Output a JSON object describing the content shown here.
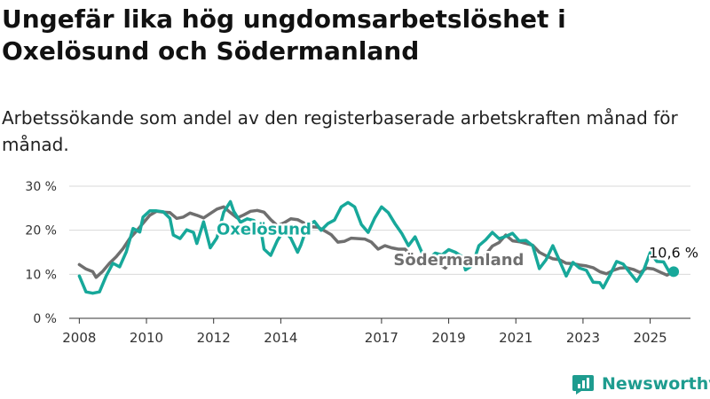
{
  "header": {
    "title": "Ungefär lika hög ungdomsarbetslöshet i Oxelösund och Södermanland",
    "subtitle": "Arbetssökande som andel av den registerbaserade arbetskraften månad för månad."
  },
  "brand": {
    "name": "Newsworthy",
    "icon": "newsworthy-logo-icon"
  },
  "colors": {
    "oxelosund": "#17a89a",
    "sodermanland": "#6f6f6f",
    "grid": "#d9d9d9",
    "axis": "#333333"
  },
  "chart_data": {
    "type": "line",
    "xlim": [
      2007.7,
      2026.2
    ],
    "ylim": [
      0,
      30
    ],
    "grid": true,
    "yticks": [
      {
        "value": 0,
        "label": "0 %"
      },
      {
        "value": 10,
        "label": "10 %"
      },
      {
        "value": 20,
        "label": "20 %"
      },
      {
        "value": 30,
        "label": "30 %"
      }
    ],
    "xticks": [
      {
        "value": 2008,
        "label": "2008"
      },
      {
        "value": 2010,
        "label": "2010"
      },
      {
        "value": 2012,
        "label": "2012"
      },
      {
        "value": 2014,
        "label": "2014"
      },
      {
        "value": 2017,
        "label": "2017"
      },
      {
        "value": 2019,
        "label": "2019"
      },
      {
        "value": 2021,
        "label": "2021"
      },
      {
        "value": 2023,
        "label": "2023"
      },
      {
        "value": 2025,
        "label": "2025"
      }
    ],
    "series": [
      {
        "name": "Södermanland",
        "label_at": {
          "x": 2019.3,
          "y": 13.3
        },
        "points": [
          [
            2008.0,
            12.2
          ],
          [
            2008.2,
            11.2
          ],
          [
            2008.4,
            10.6
          ],
          [
            2008.5,
            9.3
          ],
          [
            2008.7,
            10.7
          ],
          [
            2008.9,
            12.5
          ],
          [
            2009.1,
            14.0
          ],
          [
            2009.3,
            15.8
          ],
          [
            2009.5,
            18.1
          ],
          [
            2009.7,
            19.8
          ],
          [
            2009.9,
            21.6
          ],
          [
            2010.1,
            23.4
          ],
          [
            2010.3,
            24.3
          ],
          [
            2010.5,
            24.1
          ],
          [
            2010.7,
            24.0
          ],
          [
            2010.9,
            22.7
          ],
          [
            2011.1,
            23.0
          ],
          [
            2011.3,
            23.9
          ],
          [
            2011.5,
            23.4
          ],
          [
            2011.7,
            22.8
          ],
          [
            2011.9,
            23.8
          ],
          [
            2012.1,
            24.8
          ],
          [
            2012.3,
            25.3
          ],
          [
            2012.5,
            24.0
          ],
          [
            2012.7,
            22.8
          ],
          [
            2012.9,
            23.5
          ],
          [
            2013.1,
            24.3
          ],
          [
            2013.3,
            24.5
          ],
          [
            2013.5,
            24.1
          ],
          [
            2013.7,
            22.4
          ],
          [
            2013.9,
            21.0
          ],
          [
            2014.1,
            21.7
          ],
          [
            2014.3,
            22.6
          ],
          [
            2014.5,
            22.4
          ],
          [
            2014.7,
            21.6
          ],
          [
            2014.9,
            20.8
          ],
          [
            2015.1,
            20.7
          ],
          [
            2015.3,
            19.9
          ],
          [
            2015.5,
            19.0
          ],
          [
            2015.7,
            17.3
          ],
          [
            2015.9,
            17.5
          ],
          [
            2016.1,
            18.2
          ],
          [
            2016.3,
            18.1
          ],
          [
            2016.5,
            18.0
          ],
          [
            2016.7,
            17.3
          ],
          [
            2016.9,
            15.7
          ],
          [
            2017.1,
            16.5
          ],
          [
            2017.3,
            16.0
          ],
          [
            2017.5,
            15.7
          ],
          [
            2017.7,
            15.7
          ],
          [
            2017.9,
            14.2
          ],
          [
            2018.1,
            13.2
          ],
          [
            2018.3,
            13.8
          ],
          [
            2018.5,
            12.5
          ],
          [
            2018.7,
            12.3
          ],
          [
            2018.9,
            11.4
          ],
          [
            2019.1,
            13.2
          ],
          [
            2019.3,
            13.8
          ],
          [
            2019.5,
            13.6
          ],
          [
            2019.7,
            12.3
          ],
          [
            2019.9,
            12.4
          ],
          [
            2020.1,
            14.5
          ],
          [
            2020.3,
            16.4
          ],
          [
            2020.5,
            17.2
          ],
          [
            2020.7,
            18.9
          ],
          [
            2020.9,
            17.6
          ],
          [
            2021.1,
            17.4
          ],
          [
            2021.3,
            17.0
          ],
          [
            2021.5,
            16.6
          ],
          [
            2021.7,
            15.0
          ],
          [
            2021.9,
            14.2
          ],
          [
            2022.1,
            13.5
          ],
          [
            2022.3,
            13.3
          ],
          [
            2022.5,
            12.5
          ],
          [
            2022.7,
            12.4
          ],
          [
            2022.9,
            12.1
          ],
          [
            2023.1,
            11.9
          ],
          [
            2023.3,
            11.5
          ],
          [
            2023.5,
            10.6
          ],
          [
            2023.7,
            10.1
          ],
          [
            2023.9,
            10.9
          ],
          [
            2024.1,
            11.4
          ],
          [
            2024.3,
            11.5
          ],
          [
            2024.5,
            11.1
          ],
          [
            2024.7,
            10.4
          ],
          [
            2024.9,
            11.4
          ],
          [
            2025.1,
            11.2
          ],
          [
            2025.3,
            10.5
          ],
          [
            2025.5,
            9.8
          ],
          [
            2025.6,
            10.2
          ]
        ]
      },
      {
        "name": "Oxelösund",
        "label_at": {
          "x": 2013.5,
          "y": 20.2
        },
        "end_label": "10,6 %",
        "end_value": {
          "x": 2025.7,
          "y": 10.6
        },
        "points": [
          [
            2008.0,
            9.6
          ],
          [
            2008.2,
            6.0
          ],
          [
            2008.4,
            5.7
          ],
          [
            2008.6,
            6.0
          ],
          [
            2008.8,
            9.6
          ],
          [
            2009.0,
            12.5
          ],
          [
            2009.2,
            11.7
          ],
          [
            2009.4,
            15.1
          ],
          [
            2009.6,
            20.4
          ],
          [
            2009.8,
            19.6
          ],
          [
            2009.9,
            23.0
          ],
          [
            2010.1,
            24.4
          ],
          [
            2010.3,
            24.4
          ],
          [
            2010.5,
            24.2
          ],
          [
            2010.7,
            22.7
          ],
          [
            2010.8,
            18.9
          ],
          [
            2011.0,
            18.1
          ],
          [
            2011.2,
            20.1
          ],
          [
            2011.4,
            19.5
          ],
          [
            2011.5,
            17.0
          ],
          [
            2011.7,
            21.9
          ],
          [
            2011.9,
            16.0
          ],
          [
            2012.1,
            18.3
          ],
          [
            2012.3,
            24.1
          ],
          [
            2012.5,
            26.5
          ],
          [
            2012.6,
            24.3
          ],
          [
            2012.8,
            21.8
          ],
          [
            2013.0,
            22.6
          ],
          [
            2013.2,
            22.2
          ],
          [
            2013.4,
            20.5
          ],
          [
            2013.5,
            15.7
          ],
          [
            2013.7,
            14.3
          ],
          [
            2013.9,
            17.7
          ],
          [
            2014.1,
            20.0
          ],
          [
            2014.3,
            18.2
          ],
          [
            2014.5,
            15.0
          ],
          [
            2014.6,
            16.7
          ],
          [
            2014.8,
            21.1
          ],
          [
            2015.0,
            22.0
          ],
          [
            2015.2,
            20.0
          ],
          [
            2015.4,
            21.5
          ],
          [
            2015.6,
            22.3
          ],
          [
            2015.8,
            25.3
          ],
          [
            2016.0,
            26.3
          ],
          [
            2016.2,
            25.3
          ],
          [
            2016.4,
            21.3
          ],
          [
            2016.6,
            19.5
          ],
          [
            2016.8,
            22.8
          ],
          [
            2017.0,
            25.3
          ],
          [
            2017.2,
            24.0
          ],
          [
            2017.4,
            21.5
          ],
          [
            2017.6,
            19.3
          ],
          [
            2017.8,
            16.5
          ],
          [
            2018.0,
            18.5
          ],
          [
            2018.2,
            15.0
          ],
          [
            2018.4,
            13.5
          ],
          [
            2018.6,
            14.8
          ],
          [
            2018.8,
            14.4
          ],
          [
            2019.0,
            15.6
          ],
          [
            2019.2,
            15.0
          ],
          [
            2019.4,
            14.0
          ],
          [
            2019.5,
            11.0
          ],
          [
            2019.7,
            12.0
          ],
          [
            2019.9,
            16.5
          ],
          [
            2020.1,
            17.8
          ],
          [
            2020.3,
            19.5
          ],
          [
            2020.5,
            18.1
          ],
          [
            2020.7,
            18.6
          ],
          [
            2020.9,
            19.3
          ],
          [
            2021.1,
            17.6
          ],
          [
            2021.3,
            17.7
          ],
          [
            2021.5,
            16.5
          ],
          [
            2021.7,
            11.3
          ],
          [
            2021.9,
            13.3
          ],
          [
            2022.1,
            16.5
          ],
          [
            2022.3,
            13.1
          ],
          [
            2022.5,
            9.6
          ],
          [
            2022.7,
            12.7
          ],
          [
            2022.9,
            11.4
          ],
          [
            2023.1,
            10.9
          ],
          [
            2023.3,
            8.2
          ],
          [
            2023.5,
            8.1
          ],
          [
            2023.6,
            6.9
          ],
          [
            2023.8,
            9.8
          ],
          [
            2024.0,
            12.9
          ],
          [
            2024.2,
            12.3
          ],
          [
            2024.4,
            10.3
          ],
          [
            2024.6,
            8.4
          ],
          [
            2024.8,
            10.8
          ],
          [
            2025.0,
            14.9
          ],
          [
            2025.2,
            12.9
          ],
          [
            2025.4,
            12.8
          ],
          [
            2025.6,
            10.1
          ],
          [
            2025.7,
            10.6
          ]
        ]
      }
    ]
  }
}
